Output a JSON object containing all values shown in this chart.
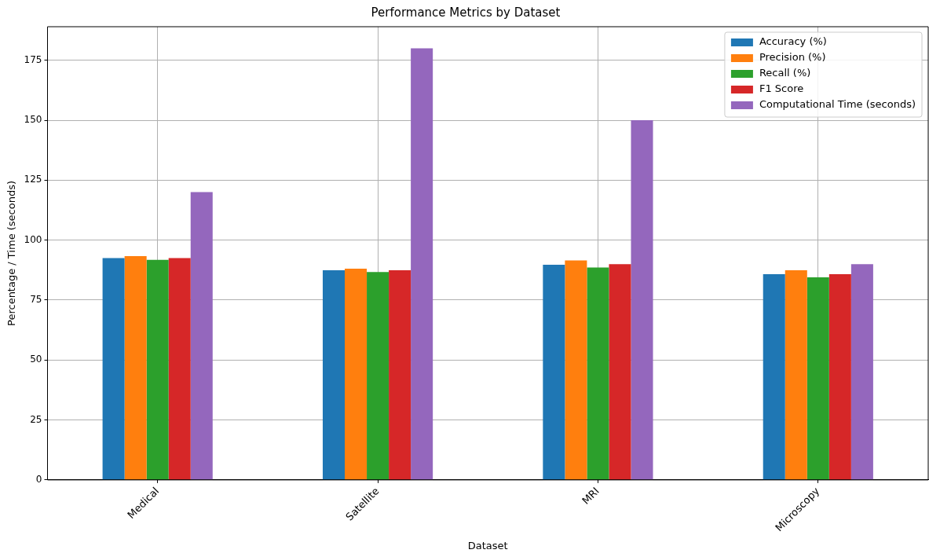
{
  "chart_data": {
    "type": "bar",
    "title": "Performance Metrics by Dataset",
    "xlabel": "Dataset",
    "ylabel": "Percentage / Time (seconds)",
    "categories": [
      "Medical",
      "Satellite",
      "MRI",
      "Microscopy"
    ],
    "series": [
      {
        "name": "Accuracy (%)",
        "color": "#1f77b4",
        "values": [
          92.5,
          87.4,
          89.7,
          85.8
        ]
      },
      {
        "name": "Precision (%)",
        "color": "#ff7f0e",
        "values": [
          93.3,
          88.1,
          91.5,
          87.4
        ]
      },
      {
        "name": "Recall (%)",
        "color": "#2ca02c",
        "values": [
          91.8,
          86.7,
          88.6,
          84.5
        ]
      },
      {
        "name": "F1 Score",
        "color": "#d62728",
        "values": [
          92.5,
          87.4,
          90.0,
          85.8
        ]
      },
      {
        "name": "Computational Time (seconds)",
        "color": "#9467bd",
        "values": [
          120,
          180,
          150,
          90
        ]
      }
    ],
    "ylim": [
      0,
      189
    ],
    "yticks": [
      0,
      25,
      50,
      75,
      100,
      125,
      150,
      175
    ],
    "grid": true,
    "legend": "top right"
  }
}
